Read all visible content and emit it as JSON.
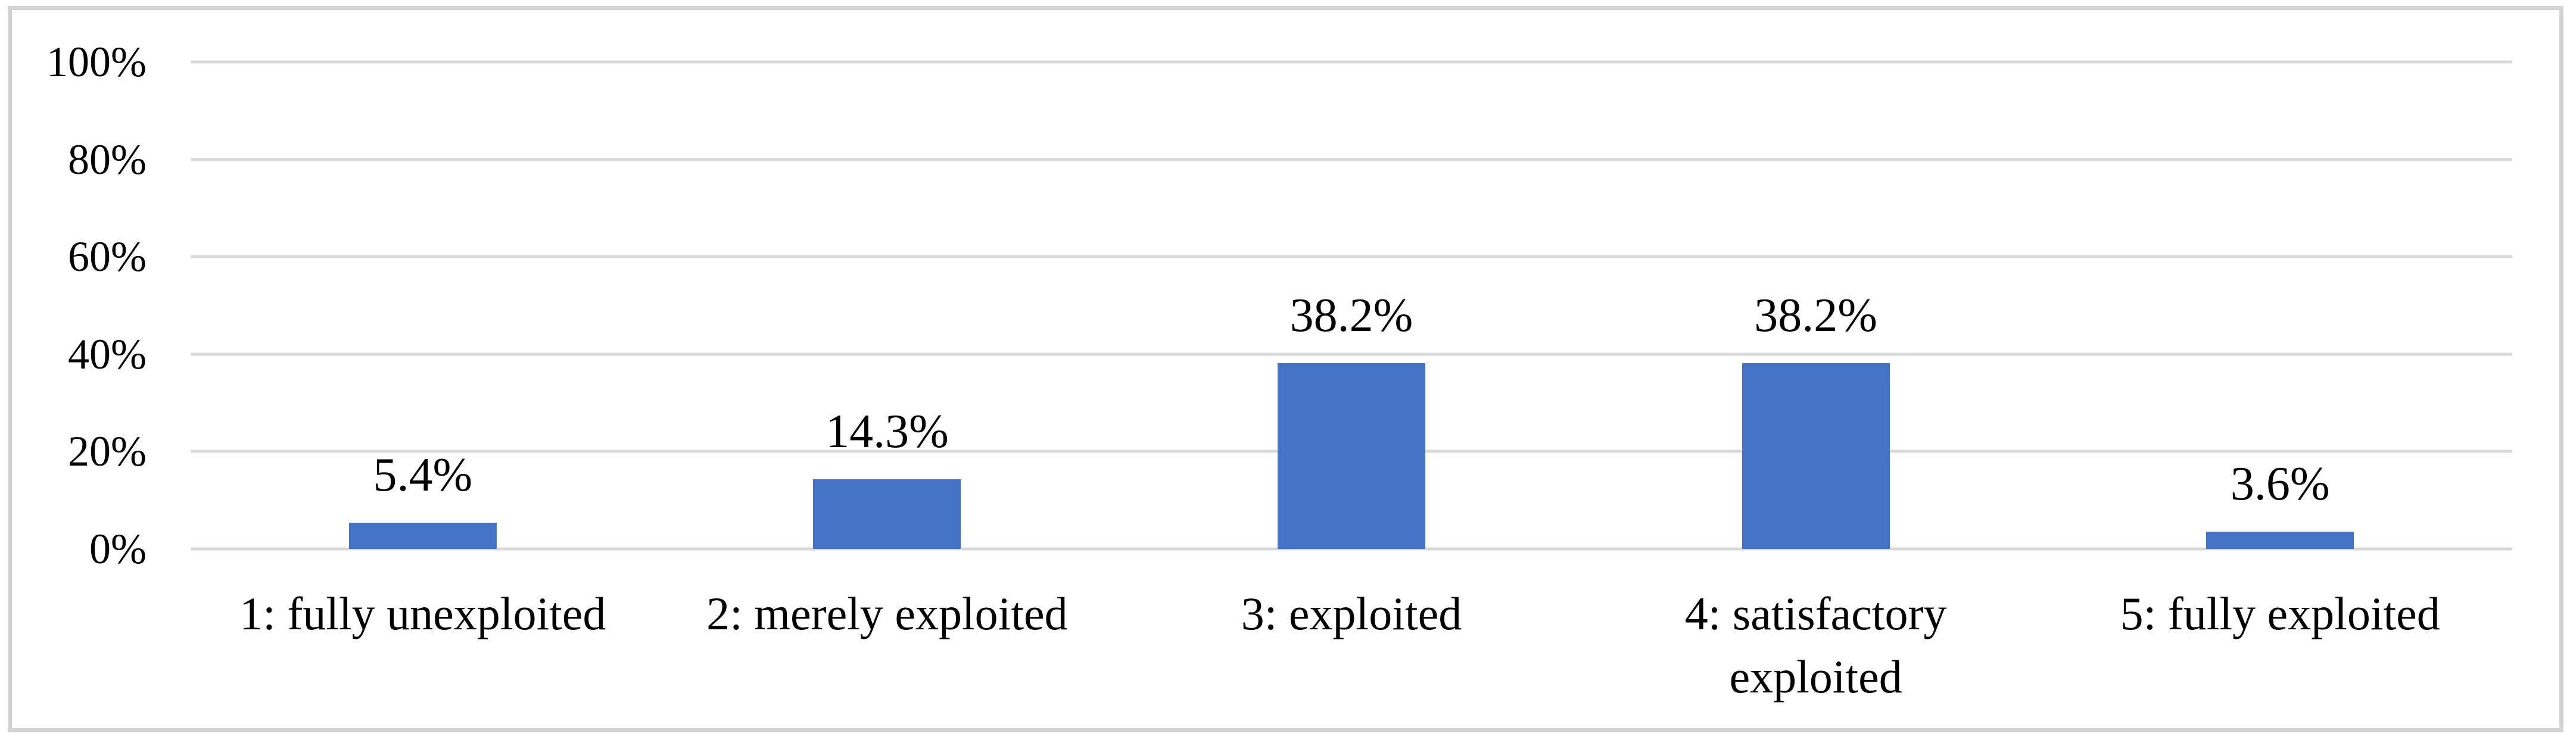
{
  "chart_data": {
    "type": "bar",
    "title": "",
    "xlabel": "",
    "ylabel": "",
    "categories": [
      "1: fully unexploited",
      "2: merely exploited",
      "3: exploited",
      "4: satisfactory exploited",
      "5: fully exploited"
    ],
    "values": [
      5.4,
      14.3,
      38.2,
      38.2,
      3.6
    ],
    "value_labels": [
      "5.4%",
      "14.3%",
      "38.2%",
      "38.2%",
      "3.6%"
    ],
    "y_ticks": [
      "100%",
      "80%",
      "60%",
      "40%",
      "20%",
      "0%"
    ],
    "ylim": [
      0,
      100
    ],
    "grid": true,
    "legend_position": "none",
    "colors": {
      "bar": "#4472c4",
      "gridline": "#d9d9d9",
      "frame_border": "#d2d2d2",
      "text": "#000000",
      "background": "#ffffff"
    }
  }
}
